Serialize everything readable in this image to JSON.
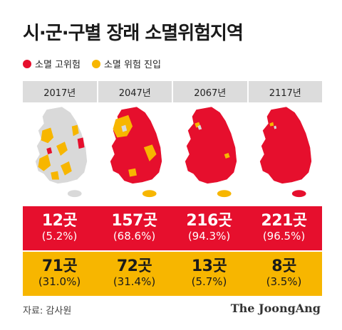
{
  "title": "시·군·구별 장래 소멸위험지역",
  "colors": {
    "high_risk": "#e60f2d",
    "entry": "#f7b600",
    "safe": "#d9d9d9",
    "header_bg": "#dcdcdc"
  },
  "legend": [
    {
      "label": "소멸 고위험",
      "color": "#e60f2d"
    },
    {
      "label": "소멸 위험 진입",
      "color": "#f7b600"
    }
  ],
  "years": [
    "2017년",
    "2047년",
    "2067년",
    "2117년"
  ],
  "high_risk": [
    {
      "count": "12곳",
      "pct": "(5.2%)"
    },
    {
      "count": "157곳",
      "pct": "(68.6%)"
    },
    {
      "count": "216곳",
      "pct": "(94.3%)"
    },
    {
      "count": "221곳",
      "pct": "(96.5%)"
    }
  ],
  "entry": [
    {
      "count": "71곳",
      "pct": "(31.0%)"
    },
    {
      "count": "72곳",
      "pct": "(31.4%)"
    },
    {
      "count": "13곳",
      "pct": "(5.7%)"
    },
    {
      "count": "8곳",
      "pct": "(3.5%)"
    }
  ],
  "source": "자료: 감사원",
  "brand": "The JoongAng",
  "maps": [
    {
      "base": "#d9d9d9",
      "accent": "#f7b600",
      "accent2": "#e60f2d",
      "island": "#d9d9d9"
    },
    {
      "base": "#e60f2d",
      "accent": "#f7b600",
      "accent2": "#d9d9d9",
      "island": "#f7b600"
    },
    {
      "base": "#e60f2d",
      "accent": "#f7b600",
      "accent2": "#d9d9d9",
      "island": "#f7b600"
    },
    {
      "base": "#e60f2d",
      "accent": "#f7b600",
      "accent2": "#d9d9d9",
      "island": "#e60f2d"
    }
  ]
}
